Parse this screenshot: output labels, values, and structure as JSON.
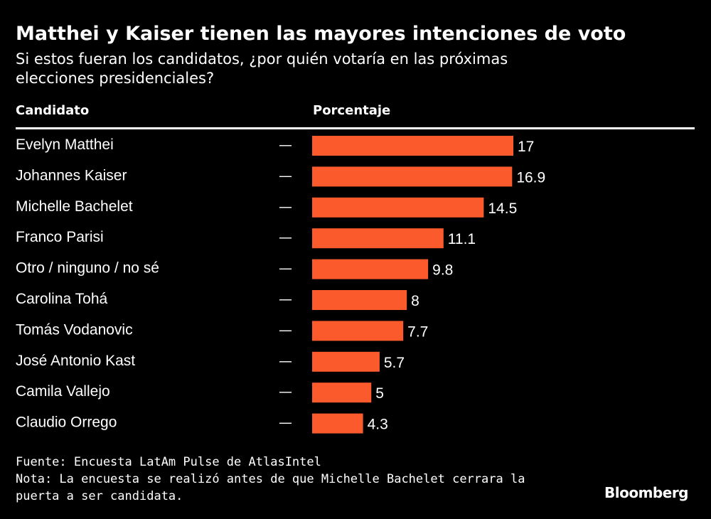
{
  "header": {
    "title": "Matthei y Kaiser tienen las mayores intenciones de voto",
    "subtitle": "Si estos fueran los candidatos, ¿por quién votaría en las próximas elecciones presidenciales?"
  },
  "table": {
    "col_candidate": "Candidato",
    "col_percentage": "Porcentaje",
    "dash_symbol": "—"
  },
  "colors": {
    "bar": "#fa5a2c",
    "background": "#000000",
    "text": "#ffffff"
  },
  "chart_data": {
    "type": "bar",
    "orientation": "horizontal",
    "categories": [
      "Evelyn Matthei",
      "Johannes Kaiser",
      "Michelle Bachelet",
      "Franco Parisi",
      "Otro / ninguno / no sé",
      "Carolina Tohá",
      "Tomás Vodanovic",
      "José Antonio Kast",
      "Camila Vallejo",
      "Claudio Orrego"
    ],
    "values": [
      17,
      16.9,
      14.5,
      11.1,
      9.8,
      8,
      7.7,
      5.7,
      5,
      4.3
    ],
    "value_labels": [
      "17",
      "16.9",
      "14.5",
      "11.1",
      "9.8",
      "8",
      "7.7",
      "5.7",
      "5",
      "4.3"
    ],
    "xlim": [
      0,
      17
    ],
    "grid": false,
    "legend": false
  },
  "footer": {
    "source": "Fuente: Encuesta LatAm Pulse de AtlasIntel",
    "note": "Nota: La encuesta se realizó antes de que Michelle Bachelet cerrara la puerta a ser candidata.",
    "brand": "Bloomberg"
  }
}
